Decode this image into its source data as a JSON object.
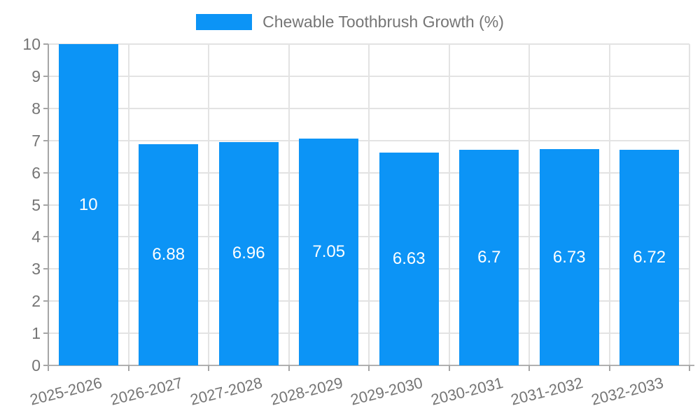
{
  "legend": {
    "label": "Chewable Toothbrush Growth (%)"
  },
  "chart_data": {
    "type": "bar",
    "title": "Chewable Toothbrush Growth (%)",
    "categories": [
      "2025-2026",
      "2026-2027",
      "2027-2028",
      "2028-2029",
      "2029-2030",
      "2030-2031",
      "2031-2032",
      "2032-2033"
    ],
    "values": [
      10,
      6.88,
      6.96,
      7.05,
      6.63,
      6.7,
      6.73,
      6.72
    ],
    "value_labels": [
      "10",
      "6.88",
      "6.96",
      "7.05",
      "6.63",
      "6.7",
      "6.73",
      "6.72"
    ],
    "xlabel": "",
    "ylabel": "",
    "ylim": [
      0,
      10
    ],
    "yticks": [
      0,
      1,
      2,
      3,
      4,
      5,
      6,
      7,
      8,
      9,
      10
    ],
    "grid": true,
    "legend_position": "top",
    "bar_color": "#0c94f6",
    "value_label_color": "#ffffff",
    "gridline_color": "#e3e3e3",
    "axis_color": "#a6a6a6",
    "tick_label_color": "#757575"
  }
}
